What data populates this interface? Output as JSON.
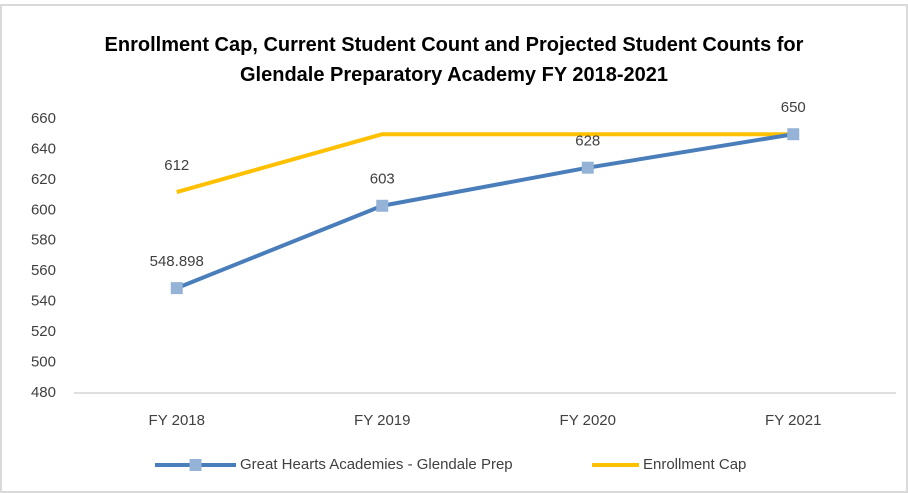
{
  "chart_data": {
    "type": "line",
    "title": "Enrollment Cap, Current Student Count and Projected Student Counts for Glendale Preparatory Academy FY 2018-2021",
    "categories": [
      "FY 2018",
      "FY 2019",
      "FY 2020",
      "FY 2021"
    ],
    "series": [
      {
        "name": "Great Hearts Academies - Glendale Prep",
        "color": "#4a7ebb",
        "marker_color": "#95b3d7",
        "marker": "square",
        "values": [
          548.898,
          603,
          628,
          650
        ],
        "data_labels": [
          true,
          true,
          true,
          true
        ]
      },
      {
        "name": "Enrollment Cap",
        "color": "#ffc000",
        "marker": "none",
        "values": [
          612,
          650,
          650,
          650
        ],
        "data_labels": [
          true,
          false,
          false,
          false
        ]
      }
    ],
    "ylim": [
      480,
      660
    ],
    "yticks": [
      480,
      500,
      520,
      540,
      560,
      580,
      600,
      620,
      640,
      660
    ],
    "grid": false,
    "legend": "bottom"
  }
}
